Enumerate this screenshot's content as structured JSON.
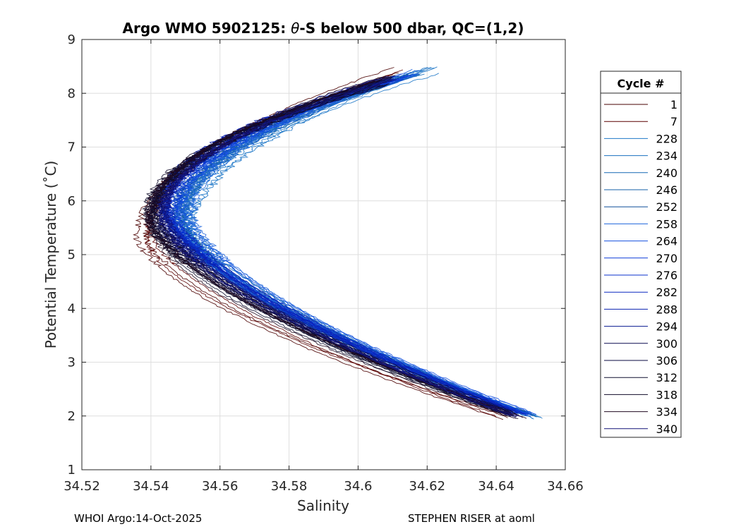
{
  "chart_data": {
    "type": "line",
    "title_prefix": "Argo WMO 5902125: ",
    "title_theta": "θ",
    "title_suffix": "-S below 500 dbar,  QC=(1,2)",
    "xlabel": "Salinity",
    "ylabel": "Potential Temperature (˚C)",
    "xlim": [
      34.52,
      34.66
    ],
    "ylim": [
      1,
      9
    ],
    "xticks": [
      34.52,
      34.54,
      34.56,
      34.58,
      34.6,
      34.62,
      34.64,
      34.66
    ],
    "xtick_labels": [
      "34.52",
      "34.54",
      "34.56",
      "34.58",
      "34.6",
      "34.62",
      "34.64",
      "34.66"
    ],
    "yticks": [
      1,
      2,
      3,
      4,
      5,
      6,
      7,
      8,
      9
    ],
    "ytick_labels": [
      "1",
      "2",
      "3",
      "4",
      "5",
      "6",
      "7",
      "8",
      "9"
    ],
    "grid": true,
    "legend_title": "Cycle #",
    "legend_position": "right",
    "series": [
      {
        "name": "1",
        "color": "#4a0000",
        "s_min": 34.537,
        "t_min": 5.3,
        "s_top": 34.611,
        "t_top": 8.42,
        "s_bot": 34.643,
        "t_bot": 1.96
      },
      {
        "name": "7",
        "color": "#5c0000",
        "s_min": 34.538,
        "t_min": 5.4,
        "s_top": 34.612,
        "t_top": 8.4,
        "s_bot": 34.642,
        "t_bot": 1.98
      },
      {
        "name": "228",
        "color": "#1f78c8",
        "s_min": 34.551,
        "t_min": 5.5,
        "s_top": 34.622,
        "t_top": 8.44,
        "s_bot": 34.652,
        "t_bot": 1.98
      },
      {
        "name": "234",
        "color": "#1a70c0",
        "s_min": 34.55,
        "t_min": 5.6,
        "s_top": 34.62,
        "t_top": 8.42,
        "s_bot": 34.651,
        "t_bot": 2.0
      },
      {
        "name": "240",
        "color": "#1668b4",
        "s_min": 34.549,
        "t_min": 5.7,
        "s_top": 34.616,
        "t_top": 8.36,
        "s_bot": 34.65,
        "t_bot": 2.0
      },
      {
        "name": "246",
        "color": "#1460a8",
        "s_min": 34.548,
        "t_min": 5.6,
        "s_top": 34.614,
        "t_top": 8.32,
        "s_bot": 34.649,
        "t_bot": 2.02
      },
      {
        "name": "252",
        "color": "#10509a",
        "s_min": 34.547,
        "t_min": 5.7,
        "s_top": 34.613,
        "t_top": 8.3,
        "s_bot": 34.648,
        "t_bot": 2.03
      },
      {
        "name": "258",
        "color": "#1e64dc",
        "s_min": 34.551,
        "t_min": 5.8,
        "s_top": 34.618,
        "t_top": 8.38,
        "s_bot": 34.651,
        "t_bot": 2.01
      },
      {
        "name": "264",
        "color": "#1450e0",
        "s_min": 34.548,
        "t_min": 5.7,
        "s_top": 34.616,
        "t_top": 8.34,
        "s_bot": 34.65,
        "t_bot": 2.02
      },
      {
        "name": "270",
        "color": "#0c3cd8",
        "s_min": 34.546,
        "t_min": 5.8,
        "s_top": 34.614,
        "t_top": 8.3,
        "s_bot": 34.649,
        "t_bot": 2.03
      },
      {
        "name": "276",
        "color": "#0a30cc",
        "s_min": 34.545,
        "t_min": 5.9,
        "s_top": 34.612,
        "t_top": 8.28,
        "s_bot": 34.648,
        "t_bot": 2.04
      },
      {
        "name": "282",
        "color": "#0a28c0",
        "s_min": 34.544,
        "t_min": 5.8,
        "s_top": 34.61,
        "t_top": 8.26,
        "s_bot": 34.647,
        "t_bot": 2.05
      },
      {
        "name": "288",
        "color": "#0a20b0",
        "s_min": 34.544,
        "t_min": 5.9,
        "s_top": 34.609,
        "t_top": 8.24,
        "s_bot": 34.646,
        "t_bot": 2.05
      },
      {
        "name": "294",
        "color": "#081890",
        "s_min": 34.543,
        "t_min": 5.8,
        "s_top": 34.608,
        "t_top": 8.22,
        "s_bot": 34.645,
        "t_bot": 2.06
      },
      {
        "name": "300",
        "color": "#0a0a50",
        "s_min": 34.542,
        "t_min": 5.7,
        "s_top": 34.607,
        "t_top": 8.2,
        "s_bot": 34.644,
        "t_bot": 2.06
      },
      {
        "name": "306",
        "color": "#0a0a40",
        "s_min": 34.541,
        "t_min": 5.8,
        "s_top": 34.607,
        "t_top": 8.22,
        "s_bot": 34.644,
        "t_bot": 2.04
      },
      {
        "name": "312",
        "color": "#101030",
        "s_min": 34.54,
        "t_min": 5.6,
        "s_top": 34.606,
        "t_top": 8.2,
        "s_bot": 34.643,
        "t_bot": 2.03
      },
      {
        "name": "318",
        "color": "#100a28",
        "s_min": 34.54,
        "t_min": 5.7,
        "s_top": 34.608,
        "t_top": 8.25,
        "s_bot": 34.644,
        "t_bot": 2.02
      },
      {
        "name": "334",
        "color": "#200a20",
        "s_min": 34.539,
        "t_min": 5.6,
        "s_top": 34.609,
        "t_top": 8.3,
        "s_bot": 34.647,
        "t_bot": 1.95
      },
      {
        "name": "340",
        "color": "#141478",
        "s_min": 34.543,
        "t_min": 5.8,
        "s_top": 34.61,
        "t_top": 8.28,
        "s_bot": 34.646,
        "t_bot": 2.0
      }
    ]
  },
  "footer": {
    "left": "WHOI Argo:14-Oct-2025",
    "right": "STEPHEN RISER at aoml"
  }
}
